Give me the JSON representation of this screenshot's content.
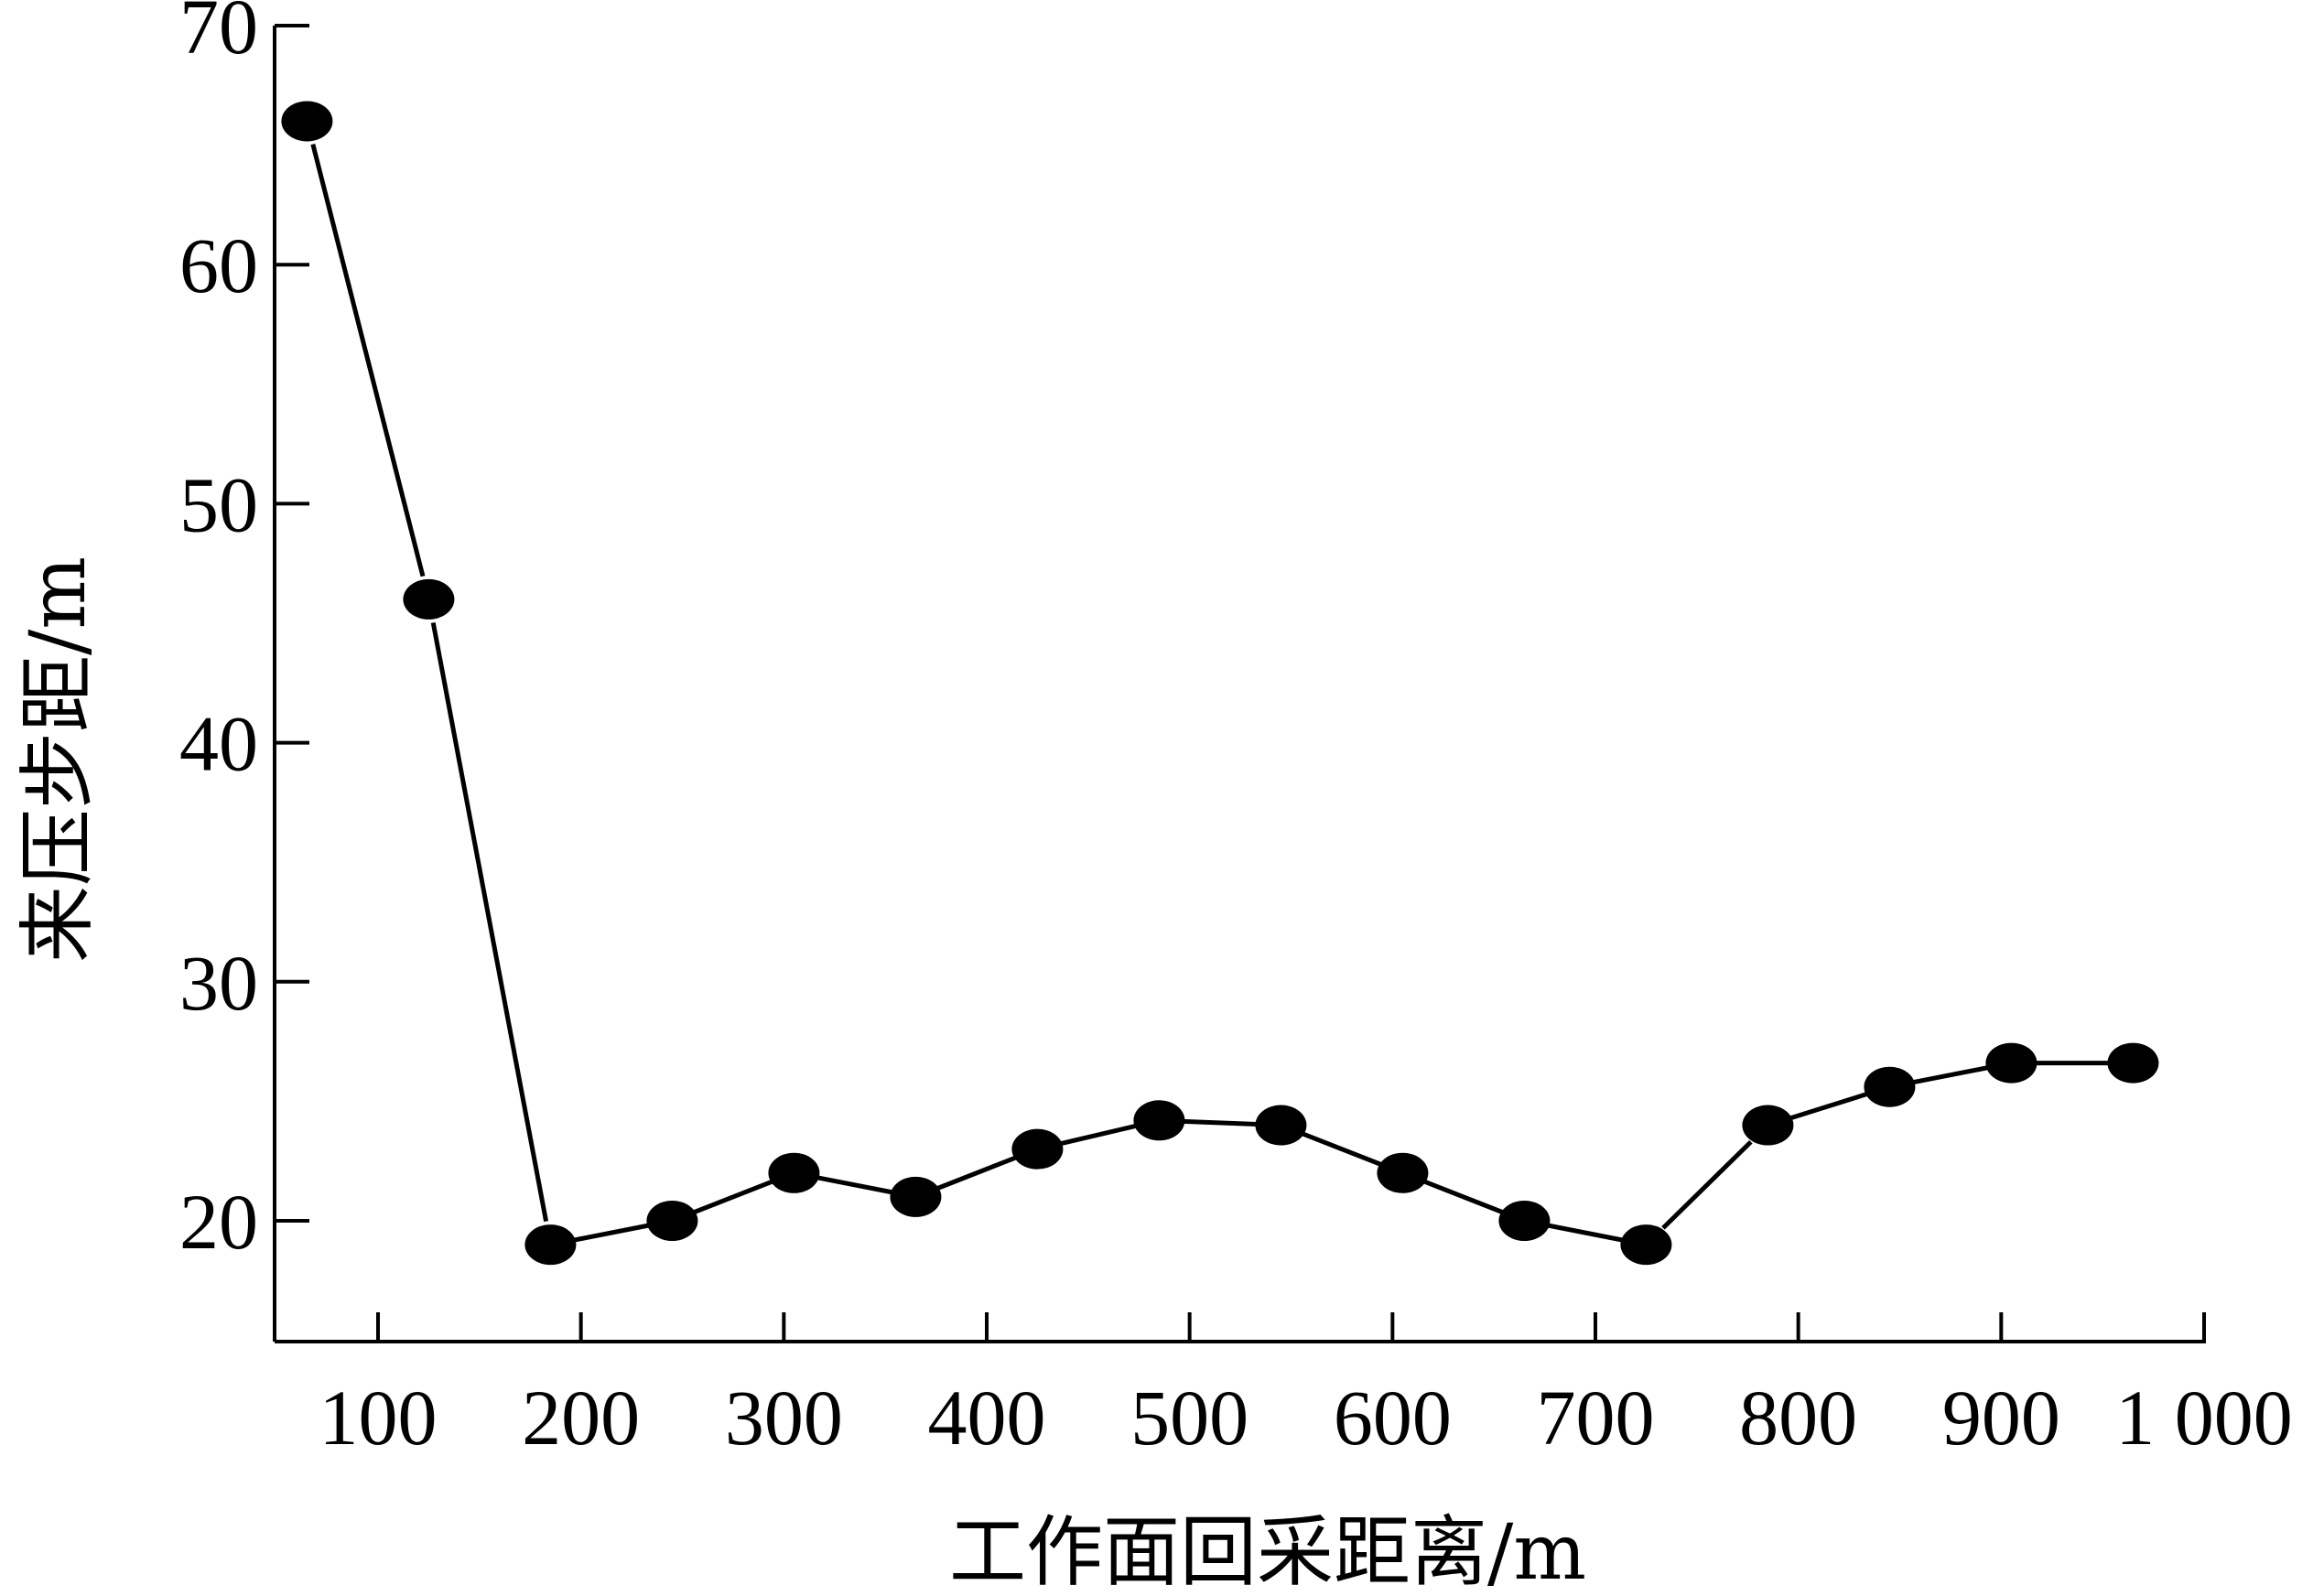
{
  "chart_data": {
    "type": "line",
    "title": "",
    "xlabel": "工作面回采距离/m",
    "ylabel": "来压步距/m",
    "xlim": [
      50,
      1000
    ],
    "ylim": [
      15,
      70
    ],
    "xticks": [
      100,
      200,
      300,
      400,
      500,
      600,
      700,
      800,
      900,
      1000
    ],
    "xtick_labels": [
      "100",
      "200",
      "300",
      "400",
      "500",
      "600",
      "700",
      "800",
      "900",
      "1 000"
    ],
    "yticks": [
      20,
      30,
      40,
      50,
      60,
      70
    ],
    "ytick_labels": [
      "20",
      "30",
      "40",
      "50",
      "60",
      "70"
    ],
    "grid": false,
    "legend": "none",
    "colors": {
      "line": "#000000",
      "marker": "#000000",
      "axis": "#000000"
    },
    "series": [
      {
        "x": [
          65,
          125,
          185,
          245,
          305,
          365,
          425,
          485,
          545,
          605,
          665,
          725,
          785,
          845,
          905,
          965
        ],
        "y": [
          66,
          46,
          19,
          20,
          22,
          21,
          23,
          24.2,
          24,
          22,
          20,
          19,
          24,
          25.6,
          26.6,
          26.6
        ]
      }
    ]
  }
}
